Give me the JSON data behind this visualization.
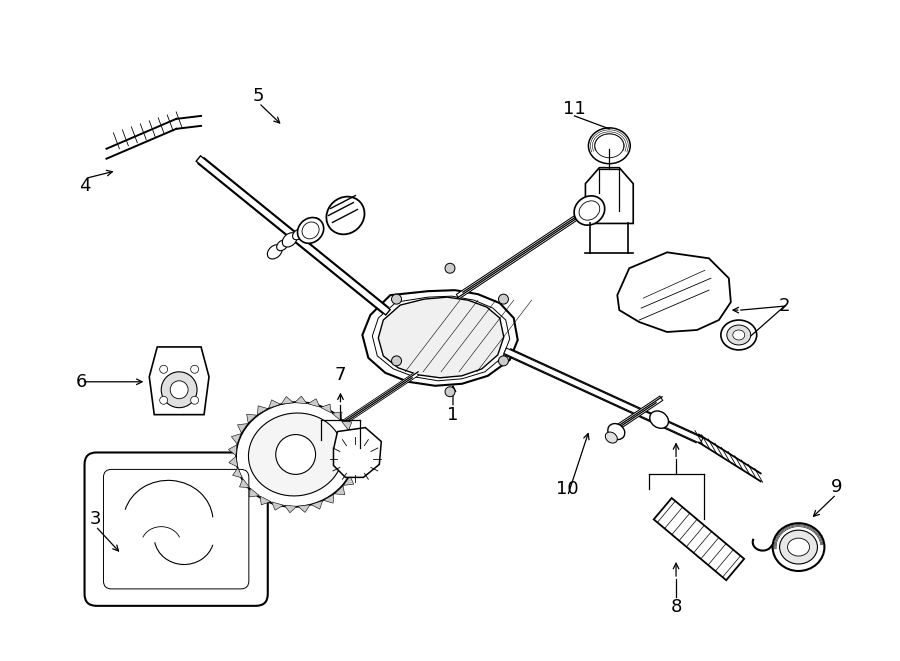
{
  "bg_color": "#ffffff",
  "line_color": "#000000",
  "figsize": [
    9.0,
    6.61
  ],
  "dpi": 100
}
